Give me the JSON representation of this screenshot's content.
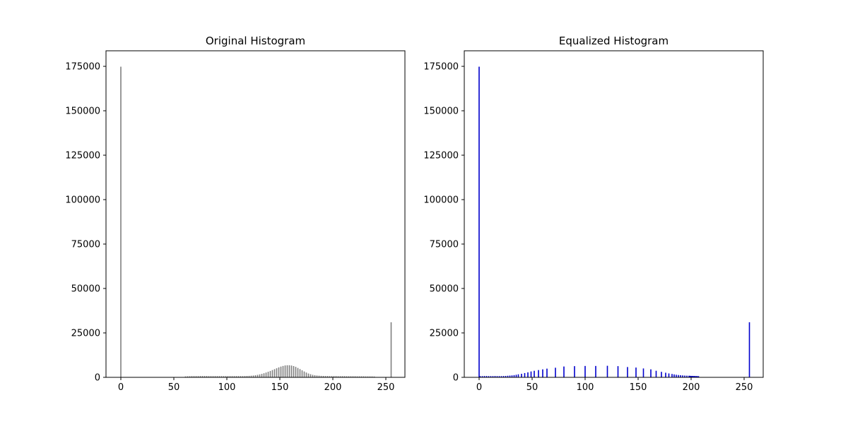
{
  "chart_data": [
    {
      "type": "bar",
      "title": "Original Histogram",
      "xlabel": "",
      "ylabel": "",
      "xlim": [
        -14,
        268
      ],
      "ylim": [
        0,
        183750
      ],
      "x_ticks": [
        0,
        50,
        100,
        150,
        200,
        250
      ],
      "y_ticks": [
        0,
        25000,
        50000,
        75000,
        100000,
        125000,
        150000,
        175000
      ],
      "grid": false,
      "color": "#808080",
      "series": [
        {
          "x": [
            0,
            61,
            63,
            65,
            67,
            69,
            71,
            73,
            75,
            77,
            79,
            81,
            83,
            85,
            87,
            89,
            91,
            93,
            95,
            97,
            99,
            101,
            103,
            105,
            107,
            109,
            111,
            113,
            115,
            117,
            119,
            121,
            123,
            125,
            127,
            129,
            131,
            133,
            135,
            137,
            139,
            141,
            143,
            145,
            147,
            149,
            151,
            153,
            155,
            157,
            159,
            161,
            163,
            165,
            167,
            169,
            171,
            173,
            175,
            177,
            179,
            181,
            183,
            185,
            187,
            189,
            191,
            193,
            195,
            197,
            199,
            201,
            203,
            205,
            207,
            209,
            211,
            213,
            215,
            217,
            219,
            221,
            223,
            225,
            227,
            229,
            231,
            233,
            235,
            237,
            239,
            255
          ],
          "values": [
            174800,
            500,
            600,
            650,
            700,
            700,
            700,
            700,
            750,
            750,
            750,
            750,
            700,
            700,
            700,
            700,
            700,
            700,
            700,
            700,
            700,
            700,
            700,
            700,
            700,
            700,
            700,
            700,
            700,
            750,
            800,
            850,
            950,
            1050,
            1200,
            1400,
            1650,
            1950,
            2300,
            2700,
            3150,
            3600,
            4100,
            4600,
            5100,
            5600,
            6050,
            6400,
            6700,
            6800,
            6800,
            6650,
            6350,
            5900,
            5300,
            4650,
            3950,
            3300,
            2700,
            2150,
            1750,
            1400,
            1200,
            1050,
            950,
            850,
            800,
            750,
            750,
            700,
            700,
            700,
            700,
            650,
            650,
            650,
            650,
            600,
            600,
            600,
            600,
            600,
            550,
            550,
            550,
            550,
            500,
            500,
            500,
            500,
            450,
            31000
          ]
        }
      ]
    },
    {
      "type": "bar",
      "title": "Equalized Histogram",
      "xlabel": "",
      "ylabel": "",
      "xlim": [
        -14,
        268
      ],
      "ylim": [
        0,
        183750
      ],
      "x_ticks": [
        0,
        50,
        100,
        150,
        200,
        250
      ],
      "y_ticks": [
        0,
        25000,
        50000,
        75000,
        100000,
        125000,
        150000,
        175000
      ],
      "grid": false,
      "color": "#0000cc",
      "series": [
        {
          "x": [
            0,
            1,
            3,
            5,
            7,
            9,
            11,
            13,
            15,
            17,
            19,
            21,
            23,
            25,
            27,
            29,
            31,
            33,
            35,
            37,
            40,
            43,
            46,
            49,
            52,
            56,
            60,
            64,
            72,
            80,
            90,
            100,
            110,
            121,
            131,
            140,
            148,
            155,
            162,
            167,
            172,
            176,
            179,
            182,
            184,
            186,
            188,
            190,
            192,
            194,
            196,
            198,
            199,
            200,
            201,
            202,
            203,
            204,
            205,
            206,
            207,
            255
          ],
          "values": [
            174800,
            700,
            700,
            750,
            750,
            700,
            700,
            700,
            750,
            700,
            700,
            700,
            750,
            800,
            900,
            1000,
            1100,
            1250,
            1450,
            1700,
            2000,
            2400,
            2800,
            3300,
            3700,
            4100,
            4500,
            4900,
            5400,
            6100,
            6300,
            6400,
            6400,
            6500,
            6300,
            5800,
            5500,
            5000,
            4500,
            3700,
            3100,
            2600,
            2200,
            1900,
            1650,
            1450,
            1300,
            1200,
            1100,
            1000,
            950,
            900,
            850,
            800,
            800,
            750,
            750,
            700,
            700,
            650,
            650,
            31000
          ]
        }
      ]
    }
  ]
}
